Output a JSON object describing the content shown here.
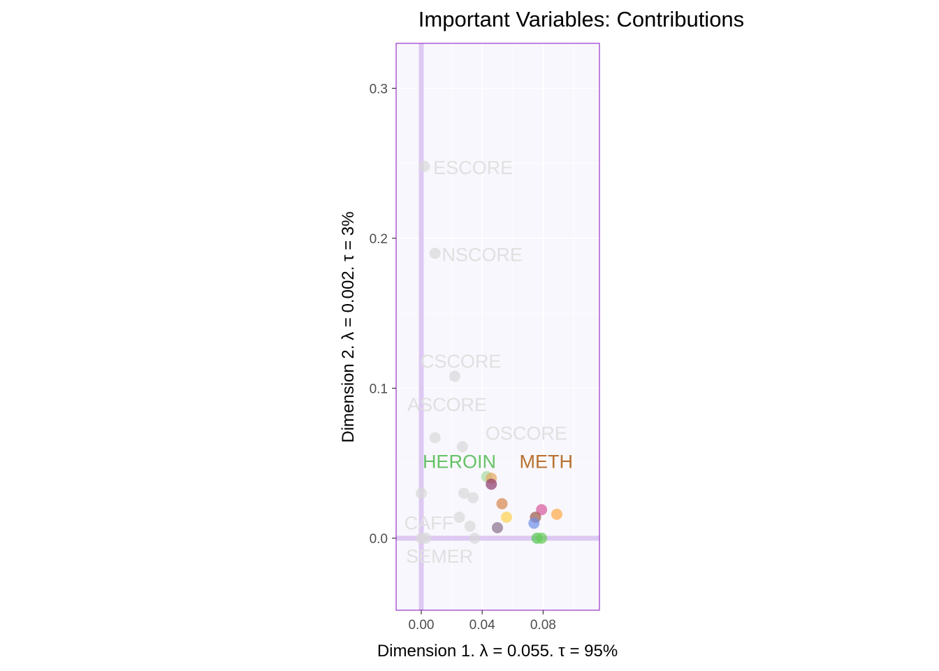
{
  "chart_data": {
    "type": "scatter",
    "title": "Important Variables: Contributions",
    "xlabel": "Dimension 1.   λ = 0.055.  τ = 95%",
    "ylabel": "Dimension 2.   λ = 0.002.  τ = 3%",
    "xlim": [
      -0.0165,
      0.117
    ],
    "ylim": [
      -0.048,
      0.33
    ],
    "x_ticks": [
      0.0,
      0.04,
      0.08
    ],
    "x_tick_labels": [
      "0.00",
      "0.04",
      "0.08"
    ],
    "y_ticks": [
      0.0,
      0.1,
      0.2,
      0.3
    ],
    "y_tick_labels": [
      "0.0",
      "0.1",
      "0.2",
      "0.3"
    ],
    "grid": true,
    "colors": {
      "panel_background": "#f8f7fd",
      "panel_border": "#9933cc",
      "origin_lines": "#ddc9f2",
      "grid": "#ffffff",
      "muted_point": "#d8d8d8",
      "muted_label": "#e0e0e0"
    },
    "points": [
      {
        "x": 0.002,
        "y": 0.248,
        "color": "#d8d8d8"
      },
      {
        "x": 0.009,
        "y": 0.19,
        "color": "#d8d8d8"
      },
      {
        "x": 0.022,
        "y": 0.108,
        "color": "#d8d8d8"
      },
      {
        "x": 0.009,
        "y": 0.067,
        "color": "#d8d8d8"
      },
      {
        "x": 0.027,
        "y": 0.061,
        "color": "#d8d8d8"
      },
      {
        "x": 0.0,
        "y": 0.03,
        "color": "#d8d8d8"
      },
      {
        "x": 0.028,
        "y": 0.03,
        "color": "#d8d8d8"
      },
      {
        "x": 0.034,
        "y": 0.027,
        "color": "#d8d8d8"
      },
      {
        "x": 0.025,
        "y": 0.014,
        "color": "#d8d8d8"
      },
      {
        "x": 0.032,
        "y": 0.008,
        "color": "#d8d8d8"
      },
      {
        "x": 0.0,
        "y": 0.0,
        "color": "#d8d8d8"
      },
      {
        "x": 0.003,
        "y": 0.0,
        "color": "#d8d8d8"
      },
      {
        "x": 0.035,
        "y": 0.0,
        "color": "#d8d8d8"
      },
      {
        "x": 0.043,
        "y": 0.041,
        "color": "#a8d8a0"
      },
      {
        "x": 0.046,
        "y": 0.04,
        "color": "#e8a860"
      },
      {
        "x": 0.046,
        "y": 0.036,
        "color": "#8b3a6e"
      },
      {
        "x": 0.053,
        "y": 0.023,
        "color": "#d6844a"
      },
      {
        "x": 0.056,
        "y": 0.014,
        "color": "#ffd24d"
      },
      {
        "x": 0.05,
        "y": 0.007,
        "color": "#8c6f8a"
      },
      {
        "x": 0.079,
        "y": 0.019,
        "color": "#d8559a"
      },
      {
        "x": 0.075,
        "y": 0.014,
        "color": "#9a5a48"
      },
      {
        "x": 0.074,
        "y": 0.01,
        "color": "#6f8fe8"
      },
      {
        "x": 0.089,
        "y": 0.016,
        "color": "#ffaa44"
      },
      {
        "x": 0.076,
        "y": 0.0,
        "color": "#55c855"
      },
      {
        "x": 0.079,
        "y": 0.0,
        "color": "#66cc55"
      }
    ],
    "labels": [
      {
        "text": "ESCORE",
        "x": 0.034,
        "y": 0.247,
        "color": "#e0e0e0"
      },
      {
        "text": "NSCORE",
        "x": 0.04,
        "y": 0.189,
        "color": "#e0e0e0"
      },
      {
        "text": "CSCORE",
        "x": 0.026,
        "y": 0.118,
        "color": "#e0e0e0"
      },
      {
        "text": "ASCORE",
        "x": 0.017,
        "y": 0.089,
        "color": "#e0e0e0"
      },
      {
        "text": "OSCORE",
        "x": 0.069,
        "y": 0.07,
        "color": "#e0e0e0"
      },
      {
        "text": "HEROIN",
        "x": 0.025,
        "y": 0.051,
        "color": "#66c266"
      },
      {
        "text": "METH",
        "x": 0.082,
        "y": 0.051,
        "color": "#b8702e"
      },
      {
        "text": "CAFF",
        "x": 0.005,
        "y": 0.01,
        "color": "#e0e0e0"
      },
      {
        "text": "SEMER",
        "x": 0.012,
        "y": -0.012,
        "color": "#e0e0e0"
      }
    ]
  }
}
